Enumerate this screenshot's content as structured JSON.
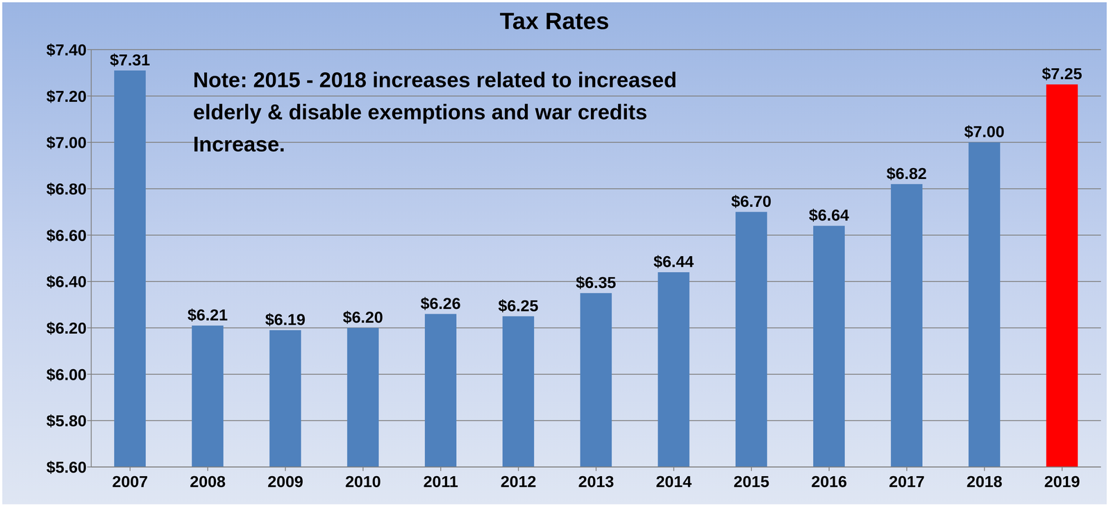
{
  "chart_data": {
    "type": "bar",
    "title": "Tax Rates",
    "annotation": "Note: 2015 - 2018 increases related to increased\nelderly & disable exemptions and war credits\nIncrease.",
    "categories": [
      "2007",
      "2008",
      "2009",
      "2010",
      "2011",
      "2012",
      "2013",
      "2014",
      "2015",
      "2016",
      "2017",
      "2018",
      "2019"
    ],
    "values": [
      7.31,
      6.21,
      6.19,
      6.2,
      6.26,
      6.25,
      6.35,
      6.44,
      6.7,
      6.64,
      6.82,
      7.0,
      7.25
    ],
    "value_labels": [
      "$7.31",
      "$6.21",
      "$6.19",
      "$6.20",
      "$6.26",
      "$6.25",
      "$6.35",
      "$6.44",
      "$6.70",
      "$6.64",
      "$6.82",
      "$7.00",
      "$7.25"
    ],
    "colors": [
      "#4f81bd",
      "#4f81bd",
      "#4f81bd",
      "#4f81bd",
      "#4f81bd",
      "#4f81bd",
      "#4f81bd",
      "#4f81bd",
      "#4f81bd",
      "#4f81bd",
      "#4f81bd",
      "#4f81bd",
      "#ff0000"
    ],
    "ylim": [
      5.6,
      7.4
    ],
    "yticks": [
      {
        "value": 5.6,
        "label": "$5.60"
      },
      {
        "value": 5.8,
        "label": "$5.80"
      },
      {
        "value": 6.0,
        "label": "$6.00"
      },
      {
        "value": 6.2,
        "label": "$6.20"
      },
      {
        "value": 6.4,
        "label": "$6.40"
      },
      {
        "value": 6.6,
        "label": "$6.60"
      },
      {
        "value": 6.8,
        "label": "$6.80"
      },
      {
        "value": 7.0,
        "label": "$7.00"
      },
      {
        "value": 7.2,
        "label": "$7.20"
      },
      {
        "value": 7.4,
        "label": "$7.40"
      }
    ],
    "grid": true,
    "data_labels": true
  }
}
